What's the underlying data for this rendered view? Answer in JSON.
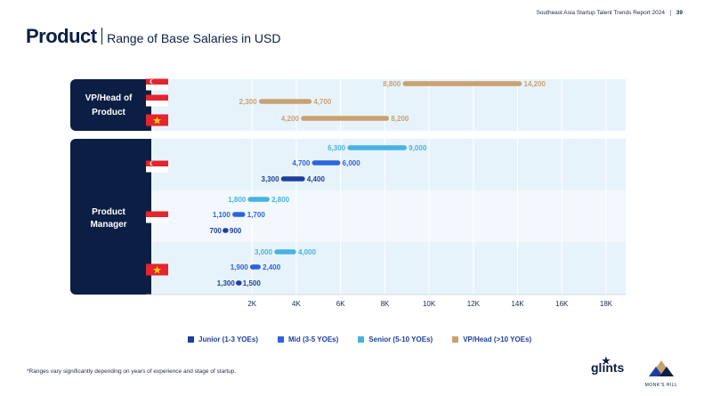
{
  "header": {
    "report_title": "Southeast Asia Startup Talent Trends Report 2024",
    "page_number": "39"
  },
  "title": {
    "main": "Product",
    "subtitle": "Range of Base Salaries in USD"
  },
  "colors": {
    "navy": "#0b1f44",
    "junior": "#1f3e9c",
    "mid": "#2c64dc",
    "senior": "#47b2e3",
    "vp": "#c9a271",
    "band1": "#e7f3fb",
    "band2": "#f2f8fd"
  },
  "chart_data": {
    "type": "range-bar",
    "title": "Range of Base Salaries in USD",
    "xlim": [
      0,
      18000
    ],
    "x_ticks": [
      2000,
      4000,
      6000,
      8000,
      10000,
      12000,
      14000,
      16000,
      18000
    ],
    "x_tick_labels": [
      "2K",
      "4K",
      "6K",
      "8K",
      "10K",
      "12K",
      "14K",
      "16K",
      "18K"
    ],
    "legend": [
      {
        "key": "junior",
        "label": "Junior (1-3 YOEs)"
      },
      {
        "key": "mid",
        "label": "Mid (3-5 YOEs)"
      },
      {
        "key": "senior",
        "label": "Senior (5-10 YOEs)"
      },
      {
        "key": "vp",
        "label": "VP/Head (>10 YOEs)"
      }
    ],
    "groups": [
      {
        "label": "VP/Head of Product",
        "countries": [
          {
            "country": "Singapore",
            "flag": "sg-flag",
            "ranges": [
              {
                "level": "vp",
                "min": 8800,
                "max": 14200,
                "min_label": "8,800",
                "max_label": "14,200"
              }
            ]
          },
          {
            "country": "Indonesia",
            "flag": "id-flag",
            "ranges": [
              {
                "level": "vp",
                "min": 2300,
                "max": 4700,
                "min_label": "2,300",
                "max_label": "4,700"
              }
            ]
          },
          {
            "country": "Vietnam",
            "flag": "vn-flag",
            "ranges": [
              {
                "level": "vp",
                "min": 4200,
                "max": 8200,
                "min_label": "4,200",
                "max_label": "8,200"
              }
            ]
          }
        ]
      },
      {
        "label": "Product Manager",
        "countries": [
          {
            "country": "Singapore",
            "flag": "sg-flag",
            "ranges": [
              {
                "level": "senior",
                "min": 6300,
                "max": 9000,
                "min_label": "6,300",
                "max_label": "9,000"
              },
              {
                "level": "mid",
                "min": 4700,
                "max": 6000,
                "min_label": "4,700",
                "max_label": "6,000"
              },
              {
                "level": "junior",
                "min": 3300,
                "max": 4400,
                "min_label": "3,300",
                "max_label": "4,400"
              }
            ]
          },
          {
            "country": "Indonesia",
            "flag": "id-flag",
            "ranges": [
              {
                "level": "senior",
                "min": 1800,
                "max": 2800,
                "min_label": "1,800",
                "max_label": "2,800"
              },
              {
                "level": "mid",
                "min": 1100,
                "max": 1700,
                "min_label": "1,100",
                "max_label": "1,700"
              },
              {
                "level": "junior",
                "min": 700,
                "max": 900,
                "min_label": "700",
                "max_label": "900"
              }
            ]
          },
          {
            "country": "Vietnam",
            "flag": "vn-flag",
            "ranges": [
              {
                "level": "senior",
                "min": 3000,
                "max": 4000,
                "min_label": "3,000",
                "max_label": "4,000"
              },
              {
                "level": "mid",
                "min": 1900,
                "max": 2400,
                "min_label": "1,900",
                "max_label": "2,400"
              },
              {
                "level": "junior",
                "min": 1300,
                "max": 1500,
                "min_label": "1,300",
                "max_label": "1,500"
              }
            ]
          }
        ]
      }
    ]
  },
  "footnote": "*Ranges vary significantly depending on years of experience and stage of startup.",
  "logos": {
    "glints": "glints",
    "monks_hill": "MONK'S HILL"
  }
}
